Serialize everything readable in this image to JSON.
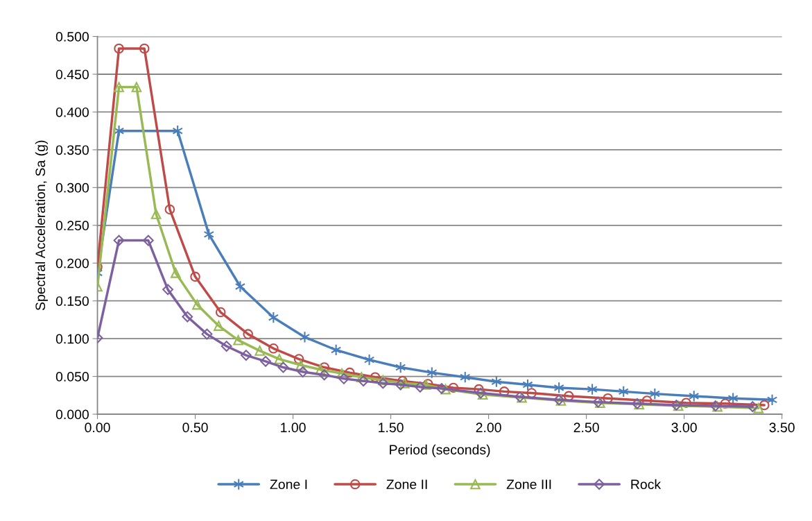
{
  "chart_data": {
    "type": "line",
    "xlabel": "Period (seconds)",
    "ylabel": "Spectral Acceleration, Sa (g)",
    "xlim": [
      0,
      3.5
    ],
    "xticks": [
      {
        "value": 0,
        "label": "0.00"
      },
      {
        "value": 0.5,
        "label": "0.50"
      },
      {
        "value": 1,
        "label": "1.00"
      },
      {
        "value": 1.5,
        "label": "1.50"
      },
      {
        "value": 2,
        "label": "2.00"
      },
      {
        "value": 2.5,
        "label": "2.50"
      },
      {
        "value": 3,
        "label": "3.00"
      },
      {
        "value": 3.5,
        "label": "3.50"
      }
    ],
    "ylim": [
      0,
      0.5
    ],
    "yticks": [
      {
        "value": 0,
        "label": "0.000"
      },
      {
        "value": 0.05,
        "label": "0.050"
      },
      {
        "value": 0.1,
        "label": "0.100"
      },
      {
        "value": 0.15,
        "label": "0.150"
      },
      {
        "value": 0.2,
        "label": "0.200"
      },
      {
        "value": 0.25,
        "label": "0.250"
      },
      {
        "value": 0.3,
        "label": "0.300"
      },
      {
        "value": 0.35,
        "label": "0.350"
      },
      {
        "value": 0.4,
        "label": "0.400"
      },
      {
        "value": 0.45,
        "label": "0.450"
      },
      {
        "value": 0.5,
        "label": "0.500"
      }
    ],
    "grid": "y",
    "legend": "bottom",
    "line_style": "solid",
    "series": [
      {
        "name": "Zone I",
        "color": "#4a7ebb",
        "marker": "cross",
        "x": [
          0,
          0.11,
          0.41,
          0.57,
          0.73,
          0.9,
          1.06,
          1.22,
          1.39,
          1.55,
          1.71,
          1.88,
          2.04,
          2.2,
          2.36,
          2.53,
          2.69,
          2.85,
          3.05,
          3.25,
          3.45
        ],
        "values": [
          0.187,
          0.375,
          0.375,
          0.238,
          0.169,
          0.128,
          0.102,
          0.085,
          0.072,
          0.062,
          0.055,
          0.049,
          0.043,
          0.039,
          0.035,
          0.033,
          0.03,
          0.027,
          0.024,
          0.021,
          0.019
        ]
      },
      {
        "name": "Zone II",
        "color": "#be4b48",
        "marker": "circle",
        "x": [
          0,
          0.11,
          0.24,
          0.37,
          0.5,
          0.63,
          0.77,
          0.9,
          1.03,
          1.16,
          1.29,
          1.42,
          1.56,
          1.69,
          1.82,
          1.95,
          2.08,
          2.22,
          2.41,
          2.61,
          2.81,
          3.01,
          3.21,
          3.41
        ],
        "values": [
          0.195,
          0.484,
          0.484,
          0.271,
          0.182,
          0.135,
          0.106,
          0.087,
          0.073,
          0.062,
          0.055,
          0.049,
          0.044,
          0.04,
          0.035,
          0.033,
          0.03,
          0.028,
          0.024,
          0.021,
          0.018,
          0.015,
          0.014,
          0.012
        ]
      },
      {
        "name": "Zone III",
        "color": "#98b954",
        "marker": "triangle",
        "x": [
          0,
          0.11,
          0.2,
          0.3,
          0.4,
          0.51,
          0.62,
          0.72,
          0.83,
          0.93,
          1.04,
          1.14,
          1.25,
          1.35,
          1.46,
          1.57,
          1.68,
          1.78,
          1.97,
          2.17,
          2.37,
          2.57,
          2.77,
          2.97,
          3.17,
          3.38
        ],
        "values": [
          0.169,
          0.433,
          0.433,
          0.265,
          0.187,
          0.145,
          0.117,
          0.098,
          0.084,
          0.073,
          0.065,
          0.059,
          0.054,
          0.049,
          0.045,
          0.041,
          0.039,
          0.033,
          0.026,
          0.022,
          0.018,
          0.015,
          0.013,
          0.011,
          0.01,
          0.008
        ]
      },
      {
        "name": "Rock",
        "color": "#7d60a0",
        "marker": "diamond",
        "x": [
          0,
          0.11,
          0.26,
          0.36,
          0.46,
          0.56,
          0.66,
          0.76,
          0.86,
          0.95,
          1.05,
          1.16,
          1.26,
          1.36,
          1.46,
          1.55,
          1.65,
          1.76,
          1.96,
          2.16,
          2.36,
          2.56,
          2.76,
          2.96,
          3.16,
          3.35
        ],
        "values": [
          0.101,
          0.23,
          0.23,
          0.165,
          0.129,
          0.106,
          0.09,
          0.078,
          0.07,
          0.062,
          0.056,
          0.052,
          0.047,
          0.044,
          0.041,
          0.039,
          0.036,
          0.034,
          0.028,
          0.023,
          0.019,
          0.016,
          0.014,
          0.012,
          0.011,
          0.01
        ]
      }
    ]
  }
}
